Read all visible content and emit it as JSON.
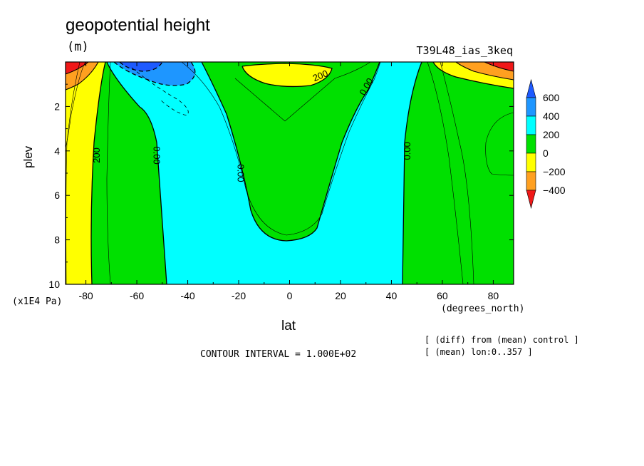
{
  "chart_data": {
    "type": "contour",
    "title": "geopotential height",
    "units": "(m)",
    "run_label": "T39L48_ias_3keq",
    "xlabel": "lat",
    "x_units": "(degrees_north)",
    "ylabel": "plev",
    "y_units": "(x1E4 Pa)",
    "xlim": [
      -88,
      88
    ],
    "ylim": [
      10,
      0
    ],
    "x_ticks": [
      -80,
      -60,
      -40,
      -20,
      0,
      20,
      40,
      60,
      80
    ],
    "x_tick_labels": [
      "-80",
      "-60",
      "-40",
      "-20",
      "0",
      "20",
      "40",
      "60",
      "80"
    ],
    "y_ticks": [
      2,
      4,
      6,
      8,
      10
    ],
    "y_tick_labels": [
      "2",
      "4",
      "6",
      "8",
      "10"
    ],
    "colorbar": {
      "levels": [
        -400,
        -200,
        0,
        200,
        400,
        600
      ],
      "labels": [
        "600",
        "400",
        "200",
        "0",
        "−200",
        "−400"
      ],
      "colors": [
        "#f01818",
        "#ffa020",
        "#ffff00",
        "#00e000",
        "#00ffff",
        "#1e96ff",
        "#1e5aff"
      ]
    },
    "contour_labels": [
      {
        "text": "200",
        "lat": -76,
        "plev": 4.2,
        "rotate": -90
      },
      {
        "text": "0.00",
        "lat": -52,
        "plev": 4.2,
        "rotate": 90
      },
      {
        "text": "0.00",
        "lat": -19,
        "plev": 5.0,
        "rotate": 90
      },
      {
        "text": "200",
        "lat": 12,
        "plev": 0.6,
        "rotate": -22
      },
      {
        "text": "0.00",
        "lat": 30,
        "plev": 1.1,
        "rotate": -60
      },
      {
        "text": "0.00",
        "lat": 46,
        "plev": 4.0,
        "rotate": -90
      }
    ],
    "contour_interval": "CONTOUR INTERVAL = 1.000E+02",
    "footnotes": [
      "[ (diff) from (mean) control ]",
      "[ (mean) lon:0..357 ]"
    ]
  }
}
